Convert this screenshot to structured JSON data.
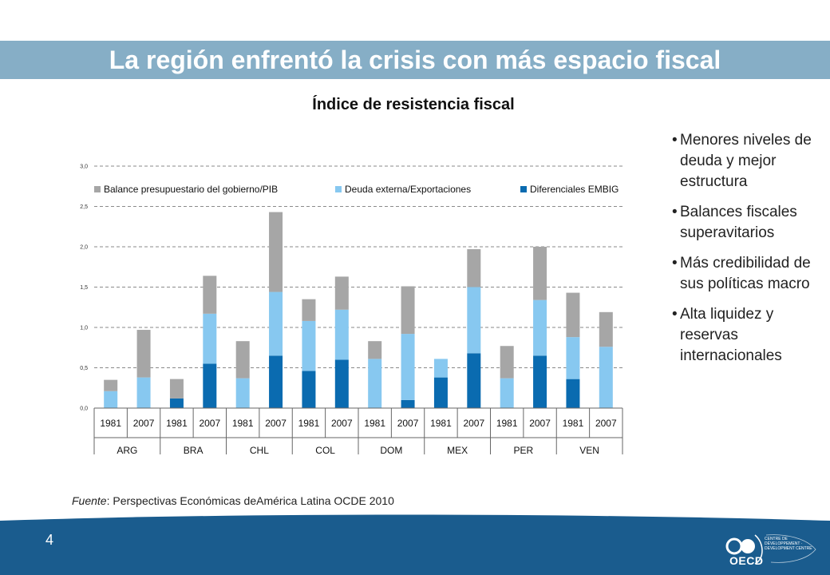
{
  "slide": {
    "title": "La región enfrentó la crisis con más espacio fiscal",
    "page_number": "4"
  },
  "colors": {
    "title_band": "#86aec6",
    "footer": "#1a5c8e",
    "series": [
      "#a6a6a6",
      "#87c8f0",
      "#0a6bb0"
    ]
  },
  "chart_data": {
    "type": "bar",
    "stacked": true,
    "title": "Índice de resistencia fiscal",
    "ylim": [
      0,
      3.0
    ],
    "yticks": [
      "0,0",
      "0,5",
      "1,0",
      "1,5",
      "2,0",
      "2,5",
      "3,0"
    ],
    "grid": true,
    "legend_position": "top",
    "groups": [
      "ARG",
      "BRA",
      "CHL",
      "COL",
      "DOM",
      "MEX",
      "PER",
      "VEN"
    ],
    "years": [
      "1981",
      "2007"
    ],
    "categories": [
      "ARG 1981",
      "ARG 2007",
      "BRA 1981",
      "BRA 2007",
      "CHL 1981",
      "CHL 2007",
      "COL 1981",
      "COL 2007",
      "DOM 1981",
      "DOM 2007",
      "MEX 1981",
      "MEX 2007",
      "PER 1981",
      "PER 2007",
      "VEN 1981",
      "VEN 2007"
    ],
    "series": [
      {
        "name": "Balance presupuestario del gobierno/PIB",
        "values": [
          0.14,
          0.59,
          0.24,
          0.47,
          0.46,
          0.99,
          0.27,
          0.41,
          0.22,
          0.59,
          0.0,
          0.47,
          0.4,
          0.66,
          0.55,
          0.43
        ]
      },
      {
        "name": "Deuda externa/Exportaciones",
        "values": [
          0.21,
          0.38,
          0.0,
          0.62,
          0.37,
          0.79,
          0.62,
          0.62,
          0.61,
          0.82,
          0.23,
          0.82,
          0.37,
          0.69,
          0.52,
          0.76
        ]
      },
      {
        "name": "Diferenciales EMBIG",
        "values": [
          0.0,
          0.0,
          0.12,
          0.55,
          0.0,
          0.65,
          0.46,
          0.6,
          0.0,
          0.1,
          0.38,
          0.68,
          0.0,
          0.65,
          0.36,
          0.0
        ]
      }
    ]
  },
  "bullets": [
    "Menores niveles de deuda y mejor estructura",
    "Balances fiscales superavitarios",
    "Más credibilidad de sus políticas macro",
    "Alta liquidez y reservas internacionales"
  ],
  "source": {
    "label": "Fuente",
    "text": ": Perspectivas Económicas deAmérica Latina OCDE 2010"
  },
  "logo": {
    "oecd": "OECD",
    "centre": "CENTRE DE DÉVELOPPEMENT · DEVELOPMENT CENTRE"
  }
}
